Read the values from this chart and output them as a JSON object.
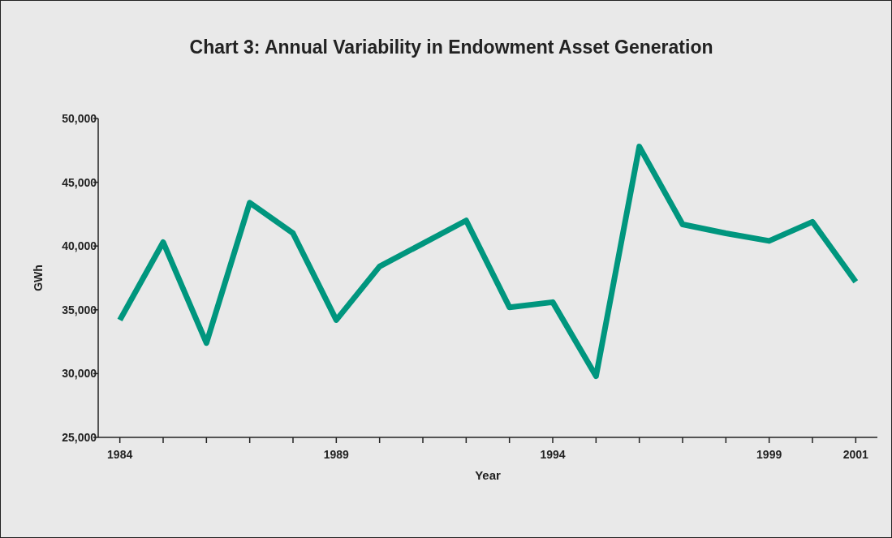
{
  "chart_data": {
    "type": "line",
    "title": "Chart 3: Annual Variability in Endowment Asset Generation",
    "xlabel": "Year",
    "ylabel": "GWh",
    "x": [
      1984,
      1985,
      1986,
      1987,
      1988,
      1989,
      1990,
      1991,
      1992,
      1993,
      1994,
      1995,
      1996,
      1997,
      1998,
      1999,
      2000,
      2001
    ],
    "series": [
      {
        "color": "#00967e",
        "values": [
          34200,
          40300,
          32400,
          43400,
          41000,
          34200,
          38400,
          40200,
          42000,
          35200,
          35600,
          29800,
          47800,
          41700,
          41000,
          40400,
          41900,
          37200
        ]
      }
    ],
    "xlim": [
      1983.5,
      2001.5
    ],
    "xticks": [
      1984,
      {
        "value": 1985,
        "label": null
      },
      {
        "value": 1986,
        "label": null
      },
      {
        "value": 1987,
        "label": null
      },
      {
        "value": 1988,
        "label": null
      },
      1989,
      {
        "value": 1990,
        "label": null
      },
      {
        "value": 1991,
        "label": null
      },
      {
        "value": 1992,
        "label": null
      },
      {
        "value": 1993,
        "label": null
      },
      1994,
      {
        "value": 1995,
        "label": null
      },
      {
        "value": 1996,
        "label": null
      },
      {
        "value": 1997,
        "label": null
      },
      {
        "value": 1998,
        "label": null
      },
      1999,
      {
        "value": 2000,
        "label": null
      },
      2001
    ],
    "ylim": [
      25000,
      50000
    ],
    "yticks": [
      {
        "value": 25000,
        "label": "25,000"
      },
      {
        "value": 30000,
        "label": "30,000"
      },
      {
        "value": 35000,
        "label": "35,000"
      },
      {
        "value": 40000,
        "label": "40,000"
      },
      {
        "value": 45000,
        "label": "45,000"
      },
      {
        "value": 50000,
        "label": "50,000"
      }
    ],
    "grid": false,
    "marker": "none",
    "line_style": "solid"
  }
}
